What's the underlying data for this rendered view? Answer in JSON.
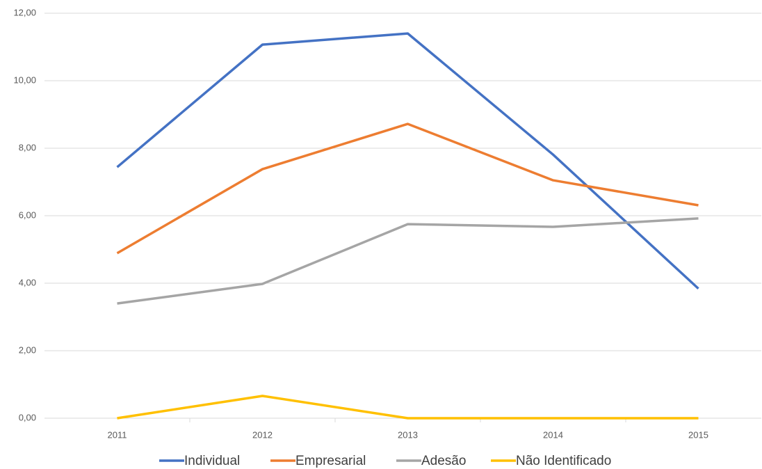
{
  "chart_data": {
    "type": "line",
    "categories": [
      "2011",
      "2012",
      "2013",
      "2014",
      "2015"
    ],
    "series": [
      {
        "name": "Individual",
        "color": "#4472c4",
        "values": [
          7.44,
          11.07,
          11.4,
          7.81,
          3.84
        ]
      },
      {
        "name": "Empresarial",
        "color": "#ed7d31",
        "values": [
          4.89,
          7.38,
          8.72,
          7.05,
          6.31
        ]
      },
      {
        "name": "Adesão",
        "color": "#a5a5a5",
        "values": [
          3.4,
          3.98,
          5.75,
          5.67,
          5.92
        ]
      },
      {
        "name": "Não Identificado",
        "color": "#ffc000",
        "values": [
          0,
          0.66,
          0,
          0,
          0
        ]
      }
    ],
    "ylim": [
      0,
      12
    ],
    "yticks": [
      {
        "value": 0,
        "label": "0,00"
      },
      {
        "value": 2,
        "label": "2,00"
      },
      {
        "value": 4,
        "label": "4,00"
      },
      {
        "value": 6,
        "label": "6,00"
      },
      {
        "value": 8,
        "label": "8,00"
      },
      {
        "value": 10,
        "label": "10,00"
      },
      {
        "value": 12,
        "label": "12,00"
      }
    ],
    "grid": true
  }
}
